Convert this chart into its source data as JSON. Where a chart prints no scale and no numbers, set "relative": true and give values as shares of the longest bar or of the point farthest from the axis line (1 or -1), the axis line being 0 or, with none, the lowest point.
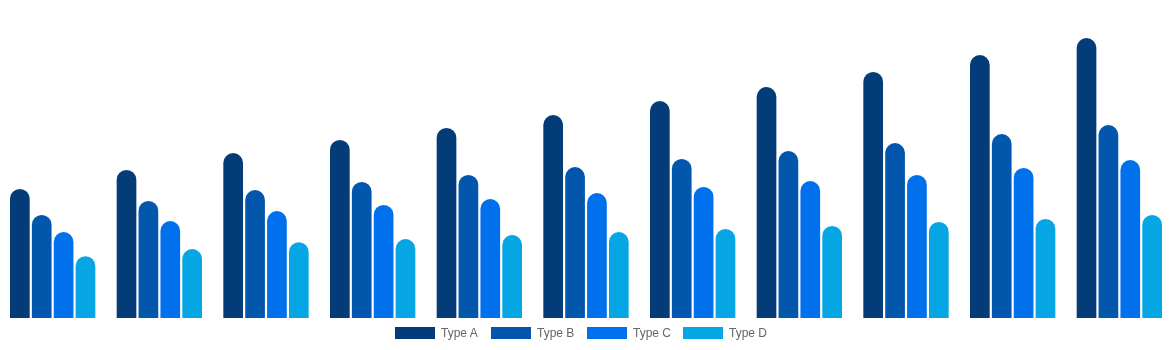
{
  "chart_data": {
    "type": "bar",
    "relative": true,
    "categories": [
      null,
      null,
      null,
      null,
      null,
      null,
      null,
      null,
      null,
      null,
      null
    ],
    "legend": "bottom",
    "series": [
      {
        "name": "Type A",
        "color": "#043c7a",
        "values": [
          0.461,
          0.529,
          0.589,
          0.636,
          0.679,
          0.725,
          0.775,
          0.825,
          0.879,
          0.939,
          1
        ]
      },
      {
        "name": "Type B",
        "color": "#0256ab",
        "values": [
          0.368,
          0.418,
          0.457,
          0.486,
          0.511,
          0.539,
          0.568,
          0.596,
          0.625,
          0.657,
          0.689
        ]
      },
      {
        "name": "Type C",
        "color": "#0070ed",
        "values": [
          0.307,
          0.346,
          0.382,
          0.404,
          0.425,
          0.446,
          0.468,
          0.489,
          0.511,
          0.536,
          0.564
        ]
      },
      {
        "name": "Type D",
        "color": "#06a6e4",
        "values": [
          0.221,
          0.246,
          0.271,
          0.282,
          0.296,
          0.307,
          0.318,
          0.329,
          0.343,
          0.354,
          0.368
        ]
      }
    ]
  }
}
